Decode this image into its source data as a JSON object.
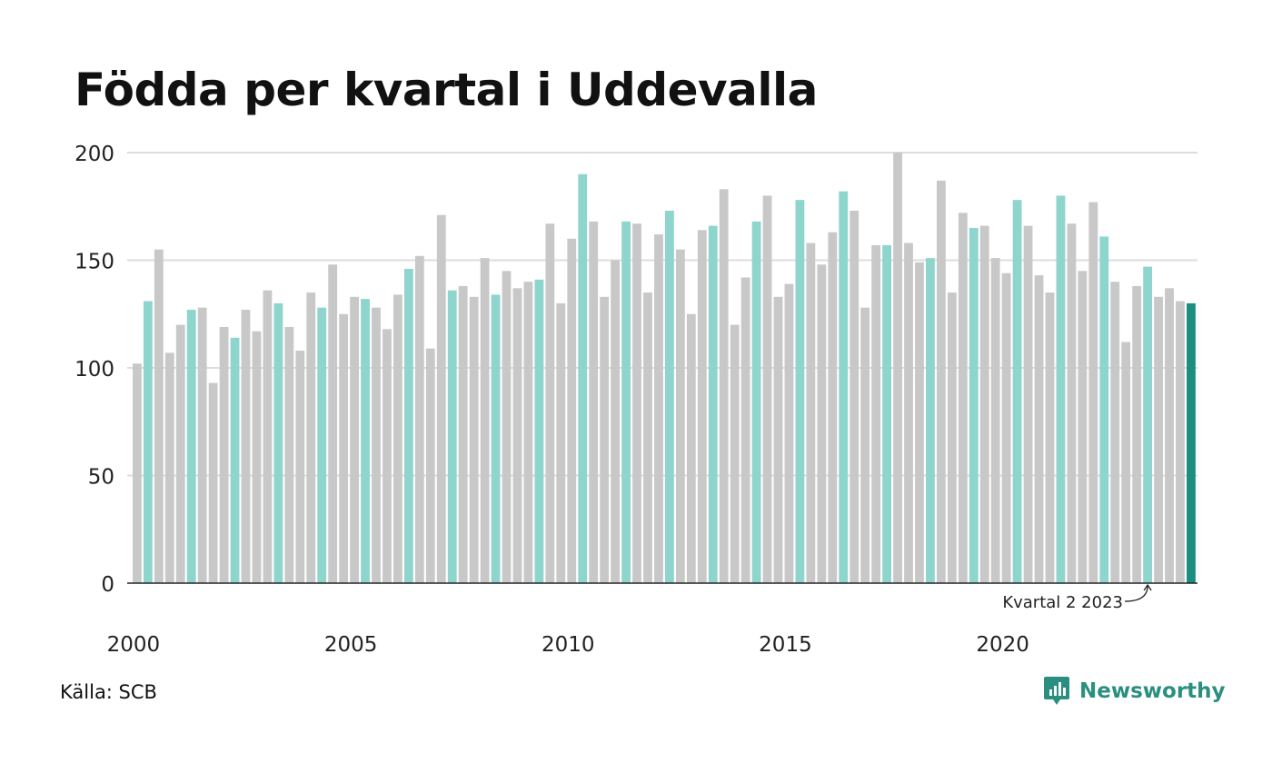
{
  "title": "Födda per kvartal i Uddevalla",
  "source": "Källa: SCB",
  "brand": "Newsworthy",
  "colors": {
    "bar_default": "#c8c8c8",
    "bar_q2": "#8dd5cd",
    "bar_latest": "#1a8e80",
    "grid": "#dcdcdc",
    "axis": "#222222",
    "brand": "#2a8f80"
  },
  "chart_data": {
    "type": "bar",
    "ylim": [
      0,
      200
    ],
    "yticks": [
      0,
      50,
      100,
      150,
      200
    ],
    "xticks": [
      "2000",
      "2005",
      "2010",
      "2015",
      "2020"
    ],
    "grid": true,
    "start_year": 2000,
    "highlight": "Kvartal 2 2023",
    "annotation": "Kvartal 2 2023",
    "values": [
      102,
      131,
      155,
      107,
      120,
      127,
      128,
      93,
      119,
      114,
      127,
      117,
      136,
      130,
      119,
      108,
      135,
      128,
      148,
      125,
      133,
      132,
      128,
      118,
      134,
      146,
      152,
      109,
      171,
      136,
      138,
      133,
      151,
      134,
      145,
      137,
      140,
      141,
      167,
      130,
      160,
      190,
      168,
      133,
      150,
      168,
      167,
      135,
      162,
      173,
      155,
      125,
      164,
      166,
      183,
      120,
      142,
      168,
      180,
      133,
      139,
      178,
      158,
      148,
      163,
      182,
      173,
      128,
      157,
      157,
      200,
      158,
      149,
      151,
      187,
      135,
      172,
      165,
      166,
      151,
      144,
      178,
      166,
      143,
      135,
      180,
      167,
      145,
      177,
      161,
      140,
      112,
      138,
      147,
      133,
      137,
      131,
      130
    ]
  }
}
